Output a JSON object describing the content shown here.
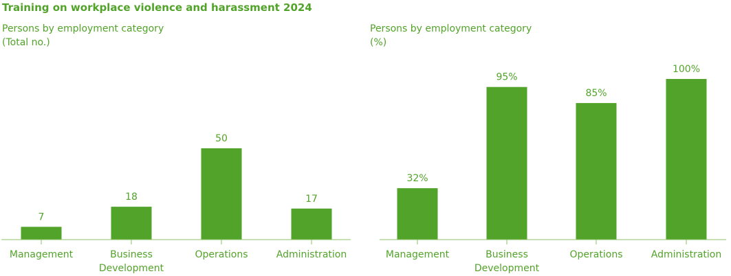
{
  "title": "Training on workplace violence and harassment 2024",
  "bar_color": "#52a32a",
  "chart_data": [
    {
      "type": "bar",
      "subtitle": "Persons by employment category",
      "unit_label": "(Total no.)",
      "categories": [
        [
          "Management"
        ],
        [
          "Business",
          "Development"
        ],
        [
          "Operations"
        ],
        [
          "Administration"
        ]
      ],
      "values": [
        7,
        18,
        50,
        17
      ],
      "value_labels": [
        "7",
        "18",
        "50",
        "17"
      ],
      "ylim": [
        0,
        50
      ]
    },
    {
      "type": "bar",
      "subtitle": "Persons by employment category",
      "unit_label": "(%)",
      "categories": [
        [
          "Management"
        ],
        [
          "Business",
          "Development"
        ],
        [
          "Operations"
        ],
        [
          "Administration"
        ]
      ],
      "values": [
        32,
        95,
        85,
        100
      ],
      "value_labels": [
        "32%",
        "95%",
        "85%",
        "100%"
      ],
      "ylim": [
        0,
        100
      ]
    }
  ]
}
